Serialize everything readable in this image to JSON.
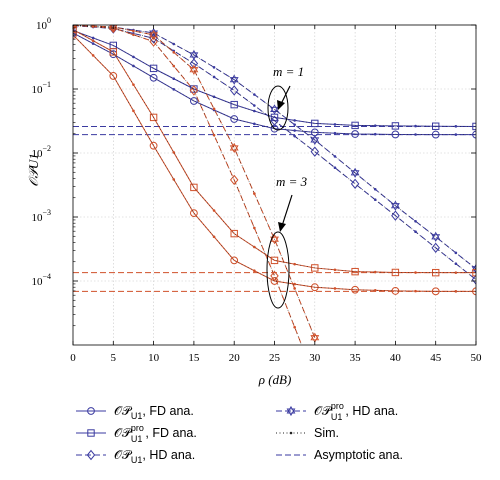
{
  "chart_data": {
    "type": "line",
    "xlabel": "ρ (dB)",
    "ylabel": "𝒪𝒫U1",
    "xlim": [
      0,
      50
    ],
    "ylim": [
      1e-05,
      1
    ],
    "yscale": "log",
    "grid": true,
    "x_ticks": [
      "0",
      "5",
      "10",
      "15",
      "20",
      "25",
      "30",
      "35",
      "40",
      "45",
      "50"
    ],
    "y_ticks": [
      {
        "base": "10",
        "exp": "0"
      },
      {
        "base": "10",
        "exp": "−1"
      },
      {
        "base": "10",
        "exp": "−2"
      },
      {
        "base": "10",
        "exp": "−3"
      },
      {
        "base": "10",
        "exp": "−4"
      }
    ],
    "annotations": [
      {
        "text": "m = 1"
      },
      {
        "text": "m = 3"
      }
    ],
    "colors": {
      "blue": "#3a3aa0",
      "red": "#d0502a"
    },
    "series": [
      {
        "group": "m1",
        "kind": "fd",
        "color": "#3a3aa0",
        "marker": "circle",
        "x": [
          0,
          5,
          10,
          15,
          20,
          25,
          30,
          35,
          40,
          45,
          50
        ],
        "y": [
          0.75,
          0.35,
          0.15,
          0.065,
          0.034,
          0.024,
          0.021,
          0.0198,
          0.0195,
          0.0194,
          0.0194
        ]
      },
      {
        "group": "m1",
        "kind": "fd",
        "color": "#3a3aa0",
        "marker": "square",
        "x": [
          0,
          5,
          10,
          15,
          20,
          25,
          30,
          35,
          40,
          45,
          50
        ],
        "y": [
          0.82,
          0.48,
          0.21,
          0.1,
          0.057,
          0.036,
          0.029,
          0.027,
          0.0265,
          0.0262,
          0.026
        ]
      },
      {
        "group": "m1",
        "kind": "hd",
        "color": "#3a3aa0",
        "marker": "diamond",
        "x": [
          0,
          5,
          10,
          15,
          20,
          25,
          30,
          35,
          40,
          45,
          50
        ],
        "y": [
          0.98,
          0.88,
          0.62,
          0.25,
          0.095,
          0.032,
          0.0105,
          0.0033,
          0.00105,
          0.00033,
          0.000105
        ]
      },
      {
        "group": "m1",
        "kind": "hd",
        "color": "#3a3aa0",
        "marker": "star",
        "x": [
          0,
          5,
          10,
          15,
          20,
          25,
          30,
          35,
          40,
          45,
          50
        ],
        "y": [
          0.99,
          0.93,
          0.75,
          0.34,
          0.14,
          0.048,
          0.016,
          0.0049,
          0.0015,
          0.00049,
          0.000155
        ]
      },
      {
        "group": "m3",
        "kind": "fd",
        "color": "#d0502a",
        "marker": "circle",
        "x": [
          0,
          5,
          10,
          15,
          20,
          25,
          30,
          35,
          40,
          45,
          50
        ],
        "y": [
          0.7,
          0.16,
          0.013,
          0.00115,
          0.00021,
          0.0001,
          8e-05,
          7.3e-05,
          7e-05,
          6.9e-05,
          6.9e-05
        ]
      },
      {
        "group": "m3",
        "kind": "fd",
        "color": "#d0502a",
        "marker": "square",
        "x": [
          0,
          5,
          10,
          15,
          20,
          25,
          30,
          35,
          40,
          45,
          50
        ],
        "y": [
          0.85,
          0.38,
          0.036,
          0.0029,
          0.00055,
          0.00021,
          0.00016,
          0.00014,
          0.000136,
          0.000135,
          0.000135
        ]
      },
      {
        "group": "m3",
        "kind": "hd",
        "color": "#d0502a",
        "marker": "diamond",
        "x": [
          0,
          5,
          10,
          15,
          20,
          25,
          30
        ],
        "y": [
          0.99,
          0.9,
          0.55,
          0.095,
          0.0038,
          0.00012,
          3e-06
        ]
      },
      {
        "group": "m3",
        "kind": "hd",
        "color": "#d0502a",
        "marker": "star",
        "x": [
          0,
          5,
          10,
          15,
          20,
          25,
          30
        ],
        "y": [
          0.995,
          0.93,
          0.7,
          0.2,
          0.012,
          0.00045,
          1.3e-05
        ]
      },
      {
        "group": "asym",
        "kind": "asym",
        "color": "#3a3aa0",
        "y_const": 0.026
      },
      {
        "group": "asym",
        "kind": "asym",
        "color": "#3a3aa0",
        "y_const": 0.0194
      },
      {
        "group": "asym",
        "kind": "asym",
        "color": "#d0502a",
        "y_const": 0.000135
      },
      {
        "group": "asym",
        "kind": "asym",
        "color": "#d0502a",
        "y_const": 6.9e-05
      }
    ],
    "legend": {
      "placement": "bottom",
      "entries": [
        {
          "prefix": "𝒪𝒫",
          "sub": "U1",
          "sup": "",
          "suffix": ", FD ana.",
          "marker": "circle",
          "style": "solid"
        },
        {
          "prefix": "𝒪𝒫",
          "sub": "U1",
          "sup": "pro",
          "suffix": ", HD ana.",
          "marker": "star",
          "style": "dashed"
        },
        {
          "prefix": "𝒪𝒫",
          "sub": "U1",
          "sup": "pro",
          "suffix": ", FD ana.",
          "marker": "square",
          "style": "solid"
        },
        {
          "prefix": "Sim.",
          "sub": "",
          "sup": "",
          "suffix": "",
          "marker": "dot",
          "style": "dotted"
        },
        {
          "prefix": "𝒪𝒫",
          "sub": "U1",
          "sup": "",
          "suffix": ", HD ana.",
          "marker": "diamond",
          "style": "dashed"
        },
        {
          "prefix": "Asymptotic ana.",
          "sub": "",
          "sup": "",
          "suffix": "",
          "marker": "none",
          "style": "dashed"
        }
      ]
    }
  }
}
